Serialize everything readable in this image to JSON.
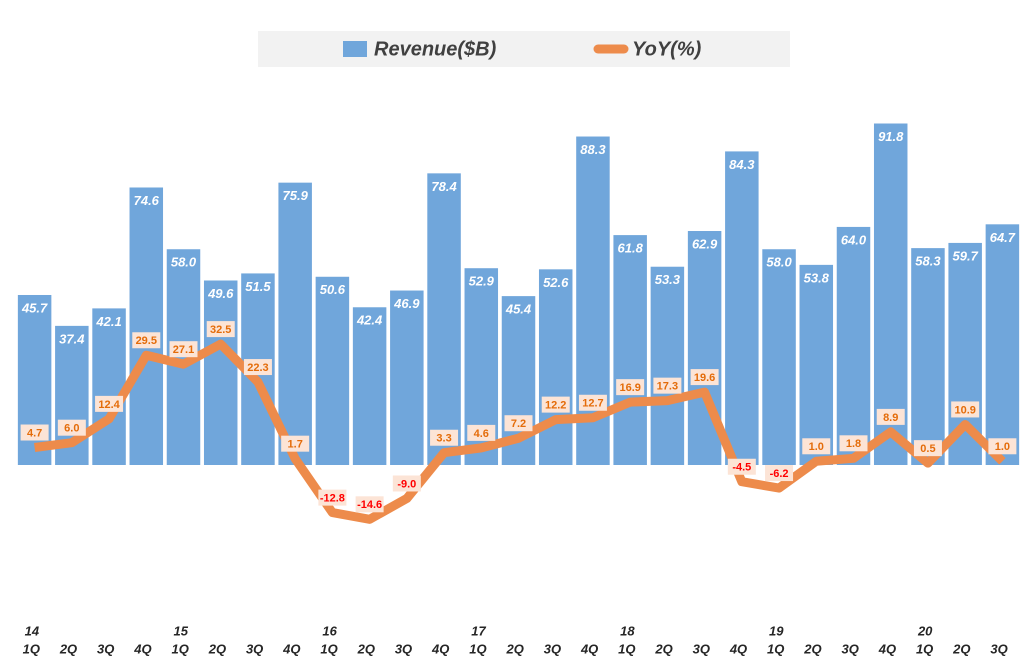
{
  "chart_data": {
    "type": "combo",
    "categories": [
      "1Q",
      "2Q",
      "3Q",
      "4Q",
      "1Q",
      "2Q",
      "3Q",
      "4Q",
      "1Q",
      "2Q",
      "3Q",
      "4Q",
      "1Q",
      "2Q",
      "3Q",
      "4Q",
      "1Q",
      "2Q",
      "3Q",
      "4Q",
      "1Q",
      "2Q",
      "3Q",
      "4Q",
      "1Q",
      "2Q",
      "3Q"
    ],
    "year_labels": [
      "14",
      null,
      null,
      null,
      "15",
      null,
      null,
      null,
      "16",
      null,
      null,
      null,
      "17",
      null,
      null,
      null,
      "18",
      null,
      null,
      null,
      "19",
      null,
      null,
      null,
      "20",
      null,
      null
    ],
    "series": [
      {
        "name": "Revenue($B)",
        "type": "bar",
        "color": "#70a6db",
        "values": [
          45.7,
          37.4,
          42.1,
          74.6,
          58.0,
          49.6,
          51.5,
          75.9,
          50.6,
          42.4,
          46.9,
          78.4,
          52.9,
          45.4,
          52.6,
          88.3,
          61.8,
          53.3,
          62.9,
          84.3,
          58.0,
          53.8,
          64.0,
          91.8,
          58.3,
          59.7,
          64.7
        ],
        "value_labels": [
          "45.7",
          "37.4",
          "42.1",
          "74.6",
          "58.0",
          "49.6",
          "51.5",
          "75.9",
          "50.6",
          "42.4",
          "46.9",
          "78.4",
          "52.9",
          "45.4",
          "52.6",
          "88.3",
          "61.8",
          "53.3",
          "62.9",
          "84.3",
          "58.0",
          "53.8",
          "64.0",
          "91.8",
          "58.3",
          "59.7",
          "64.7"
        ]
      },
      {
        "name": "YoY(%)",
        "type": "line",
        "color": "#ed8b4b",
        "values": [
          4.7,
          6.0,
          12.4,
          29.5,
          27.1,
          32.5,
          22.3,
          1.7,
          -12.8,
          -14.6,
          -9.0,
          3.3,
          4.6,
          7.2,
          12.2,
          12.7,
          16.9,
          17.3,
          19.6,
          -4.5,
          -6.2,
          1.0,
          1.8,
          8.9,
          0.5,
          10.9,
          1.0
        ],
        "value_labels": [
          "4.7",
          "6.0",
          "12.4",
          "29.5",
          "27.1",
          "32.5",
          "22.3",
          "1.7",
          "-12.8",
          "-14.6",
          "-9.0",
          "3.3",
          "4.6",
          "7.2",
          "12.2",
          "12.7",
          "16.9",
          "17.3",
          "19.6",
          "-4.5",
          "-6.2",
          "1.0",
          "1.8",
          "8.9",
          "0.5",
          "10.9",
          "1.0"
        ]
      }
    ]
  }
}
